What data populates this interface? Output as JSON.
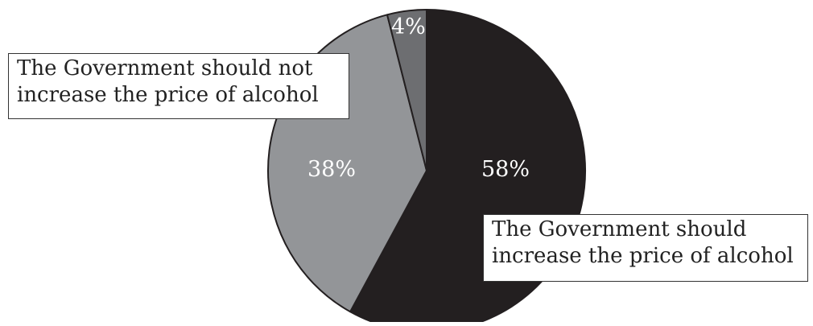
{
  "chart_data": {
    "type": "pie",
    "slices": [
      {
        "label": "The Government should increase the price of alcohol",
        "value": 58,
        "display": "58%",
        "color": "#231f20"
      },
      {
        "label": "The Government should not increase the price of alcohol",
        "value": 38,
        "display": "38%",
        "color": "#939598"
      },
      {
        "label": "",
        "value": 4,
        "display": "4%",
        "color": "#6d6e71"
      }
    ],
    "callouts": {
      "not_increase": {
        "line1": "The Government should not",
        "line2": "increase the price of alcohol"
      },
      "increase": {
        "line1": "The Government should",
        "line2": "increase the price of alcohol"
      }
    },
    "start_angle": "12 o'clock",
    "direction": "clockwise",
    "legend": "callout boxes"
  }
}
